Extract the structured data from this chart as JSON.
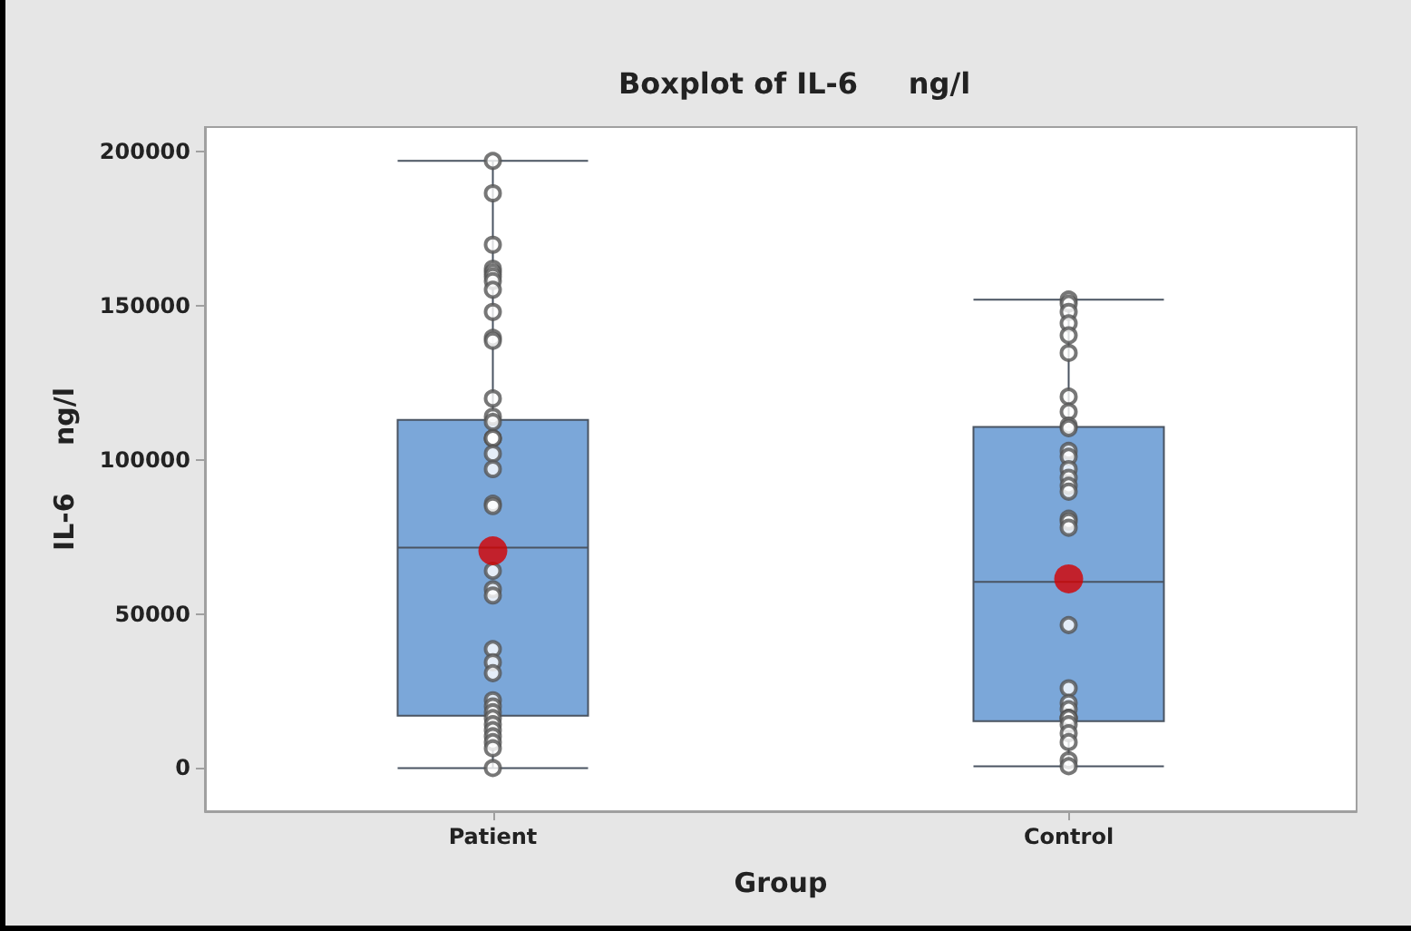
{
  "chart_data": {
    "type": "box",
    "title": "Boxplot of IL-6     ng/l",
    "xlabel": "Group",
    "ylabel": "IL-6     ng/l",
    "categories": [
      "Patient",
      "Control"
    ],
    "color": "#7ba7d9",
    "boxes": [
      {
        "low": 0,
        "q1": 17000,
        "median": 71500,
        "q3": 113000,
        "high": 197000,
        "mean": 70500
      },
      {
        "low": 600,
        "q1": 15200,
        "median": 60400,
        "q3": 110700,
        "high": 152000,
        "mean": 61400
      }
    ],
    "series": [
      {
        "type": "scatter",
        "color": "#555555",
        "marker": "circle",
        "x": [
          "Patient",
          "Patient",
          "Patient",
          "Patient",
          "Patient",
          "Patient",
          "Patient",
          "Patient",
          "Patient",
          "Patient",
          "Patient",
          "Patient",
          "Patient",
          "Patient",
          "Patient",
          "Patient",
          "Patient",
          "Patient",
          "Patient",
          "Patient",
          "Patient",
          "Patient",
          "Patient",
          "Patient",
          "Patient",
          "Patient",
          "Patient",
          "Patient",
          "Patient",
          "Patient",
          "Patient",
          "Patient",
          "Patient",
          "Patient",
          "Patient",
          "Patient",
          "Patient",
          "Control",
          "Control",
          "Control",
          "Control",
          "Control",
          "Control",
          "Control",
          "Control",
          "Control",
          "Control",
          "Control",
          "Control",
          "Control",
          "Control",
          "Control",
          "Control",
          "Control",
          "Control",
          "Control",
          "Control",
          "Control",
          "Control",
          "Control",
          "Control",
          "Control",
          "Control",
          "Control",
          "Control",
          "Control",
          "Control",
          "Control"
        ],
        "values": [
          197000,
          186500,
          169800,
          162000,
          160800,
          159500,
          158000,
          155200,
          148000,
          139600,
          138600,
          119900,
          114000,
          112300,
          107000,
          107000,
          107000,
          102000,
          97000,
          85800,
          85000,
          64000,
          58000,
          56000,
          38600,
          34300,
          30800,
          22000,
          20000,
          18100,
          16200,
          14200,
          12300,
          10300,
          8400,
          6400,
          0,
          152000,
          150700,
          148000,
          144300,
          140400,
          134700,
          120500,
          115600,
          111100,
          110300,
          102900,
          101000,
          97000,
          94200,
          91600,
          89700,
          80900,
          80000,
          78000,
          46400,
          25900,
          21100,
          19100,
          16200,
          16200,
          16200,
          14200,
          11300,
          8400,
          2500,
          600
        ]
      }
    ],
    "ylim": [
      -14000,
      208000
    ],
    "yticks": [
      0,
      50000,
      100000,
      150000,
      200000
    ],
    "grid": false
  }
}
